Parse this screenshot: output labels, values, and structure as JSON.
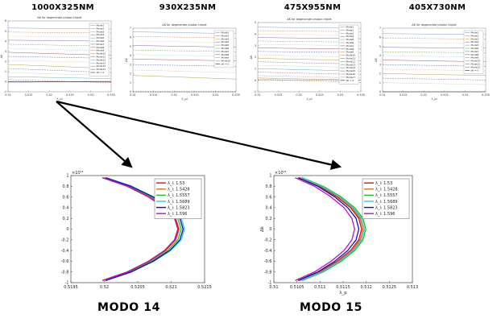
{
  "titles": {
    "top": [
      "1000X325NM",
      "930X235NM",
      "475X955NM",
      "405X730NM"
    ],
    "bottom": [
      "MODO 14",
      "MODO 15"
    ]
  },
  "chart_data": [
    {
      "type": "line",
      "title": "1000X325NM",
      "subtitle": "ΔK for degenerate photon triplet",
      "xlabel": "λ_pi",
      "ylabel": "ΔK",
      "xlim": [
        0.51,
        0.535
      ],
      "ylim": [
        -1,
        6
      ],
      "x_ticks": [
        "0.51",
        "0.515",
        "0.52",
        "0.525",
        "0.53",
        "0.535"
      ],
      "legend_position": "right",
      "series": [
        {
          "name": "Mode1",
          "values": [
            5.3,
            5.2
          ],
          "color": "#7aa0d0"
        },
        {
          "name": "Mode2",
          "values": [
            4.9,
            4.8
          ],
          "color": "#d08a5a"
        },
        {
          "name": "Mode3",
          "values": [
            4.5,
            4.4
          ],
          "color": "#c9b34a"
        },
        {
          "name": "Mode4",
          "values": [
            4.1,
            4.0
          ],
          "color": "#8a6ab0"
        },
        {
          "name": "Mode5",
          "values": [
            3.7,
            3.5
          ],
          "color": "#7ab05a"
        },
        {
          "name": "Mode6",
          "values": [
            3.3,
            3.0
          ],
          "color": "#5ab0c9"
        },
        {
          "name": "Mode7",
          "values": [
            2.9,
            2.6
          ],
          "color": "#b05a5a"
        },
        {
          "name": "Mode8",
          "values": [
            2.5,
            2.3
          ],
          "color": "#5a7ab0"
        },
        {
          "name": "Mode9",
          "values": [
            2.1,
            1.9
          ],
          "color": "#d0905a"
        },
        {
          "name": "Mode10",
          "values": [
            1.7,
            1.3
          ],
          "color": "#b0a04a"
        },
        {
          "name": "Mode11",
          "values": [
            1.3,
            0.9
          ],
          "color": "#9a6ab0"
        },
        {
          "name": "Mode12",
          "values": [
            0.9,
            0.6
          ],
          "color": "#6ab06a"
        },
        {
          "name": "Mode13",
          "values": [
            0.5,
            0.3
          ],
          "color": "#6ab0c0"
        },
        {
          "name": "Mode14",
          "values": [
            0.2,
            -0.1
          ],
          "color": "#c06a6a"
        },
        {
          "name": "Mode15",
          "values": [
            -0.1,
            0.1
          ],
          "color": "#4a6ab0"
        },
        {
          "name": "dK = 0",
          "values": [
            0,
            0
          ],
          "color": "#222222"
        }
      ]
    },
    {
      "type": "line",
      "title": "930X235NM",
      "subtitle": "ΔK for degenerate photon triplet",
      "xlabel": "λ_pi",
      "ylabel": "ΔK",
      "xlim": [
        0.51,
        0.535
      ],
      "ylim": [
        0,
        7
      ],
      "x_ticks": [
        "0.51",
        "0.515",
        "0.52",
        "0.525",
        "0.53",
        "0.535"
      ],
      "legend_position": "right",
      "series": [
        {
          "name": "Mode1",
          "values": [
            6.6,
            6.4
          ],
          "color": "#7aa0d0"
        },
        {
          "name": "Mode2",
          "values": [
            6.1,
            5.9
          ],
          "color": "#d08a5a"
        },
        {
          "name": "Mode3",
          "values": [
            5.6,
            5.4
          ],
          "color": "#c9b34a"
        },
        {
          "name": "Mode4",
          "values": [
            5.1,
            4.9
          ],
          "color": "#8a6ab0"
        },
        {
          "name": "Mode5",
          "values": [
            4.6,
            4.4
          ],
          "color": "#7ab05a"
        },
        {
          "name": "Mode6",
          "values": [
            4.1,
            3.9
          ],
          "color": "#5ab0c9"
        },
        {
          "name": "Mode7",
          "values": [
            3.6,
            3.4
          ],
          "color": "#b05a5a"
        },
        {
          "name": "Mode8",
          "values": [
            3.0,
            2.8
          ],
          "color": "#5a7ab0"
        },
        {
          "name": "Mode9",
          "values": [
            2.4,
            2.1
          ],
          "color": "#d0905a"
        },
        {
          "name": "Mode10",
          "values": [
            1.8,
            1.4
          ],
          "color": "#b0a04a"
        },
        {
          "name": "dK = 0",
          "values": [
            0,
            0
          ],
          "color": "#222222"
        }
      ]
    },
    {
      "type": "line",
      "title": "475X955NM",
      "subtitle": "ΔK for degenerate photon triplet",
      "xlabel": "λ_pi",
      "ylabel": "ΔK",
      "xlim": [
        0.51,
        0.535
      ],
      "ylim": [
        -1,
        5
      ],
      "x_ticks": [
        "0.51",
        "0.515",
        "0.52",
        "0.525",
        "0.53",
        "0.535"
      ],
      "legend_position": "right",
      "series": [
        {
          "name": "Mode1",
          "values": [
            4.6,
            4.5
          ],
          "color": "#7aa0d0"
        },
        {
          "name": "Mode2",
          "values": [
            4.3,
            4.2
          ],
          "color": "#d08a5a"
        },
        {
          "name": "Mode3",
          "values": [
            4.0,
            3.9
          ],
          "color": "#c9b34a"
        },
        {
          "name": "Mode4",
          "values": [
            3.7,
            3.6
          ],
          "color": "#8a6ab0"
        },
        {
          "name": "Mode5",
          "values": [
            3.4,
            3.3
          ],
          "color": "#7ab05a"
        },
        {
          "name": "Mode6",
          "values": [
            3.1,
            3.0
          ],
          "color": "#5ab0c9"
        },
        {
          "name": "Mode7",
          "values": [
            2.8,
            2.7
          ],
          "color": "#b05a5a"
        },
        {
          "name": "Mode8",
          "values": [
            2.5,
            2.4
          ],
          "color": "#5a7ab0"
        },
        {
          "name": "Mode9",
          "values": [
            2.2,
            2.0
          ],
          "color": "#d0905a"
        },
        {
          "name": "Mode10",
          "values": [
            1.9,
            1.7
          ],
          "color": "#b0a04a"
        },
        {
          "name": "Mode11",
          "values": [
            1.6,
            1.4
          ],
          "color": "#9a6ab0"
        },
        {
          "name": "Mode12",
          "values": [
            1.3,
            1.1
          ],
          "color": "#6ab06a"
        },
        {
          "name": "Mode13",
          "values": [
            1.0,
            0.8
          ],
          "color": "#6ab0c0"
        },
        {
          "name": "Mode14",
          "values": [
            0.7,
            0.5
          ],
          "color": "#c06a6a"
        },
        {
          "name": "Mode15",
          "values": [
            0.4,
            0.2
          ],
          "color": "#4a6ab0"
        },
        {
          "name": "Mode16",
          "values": [
            0.2,
            0.0
          ],
          "color": "#d08a5a"
        },
        {
          "name": "Mode17",
          "values": [
            0.1,
            -0.2
          ],
          "color": "#b0a04a"
        },
        {
          "name": "dK = 0",
          "values": [
            0,
            0
          ],
          "color": "#222222"
        }
      ]
    },
    {
      "type": "line",
      "title": "405X730NM",
      "subtitle": "ΔK for degenerate photon triplet",
      "xlabel": "λ_pi",
      "ylabel": "ΔK",
      "xlim": [
        0.51,
        0.535
      ],
      "ylim": [
        0,
        7
      ],
      "x_ticks": [
        "0.51",
        "0.515",
        "0.52",
        "0.525",
        "0.53",
        "0.535"
      ],
      "legend_position": "right",
      "series": [
        {
          "name": "Mode1",
          "values": [
            6.4,
            6.3
          ],
          "color": "#7aa0d0"
        },
        {
          "name": "Mode2",
          "values": [
            5.9,
            5.8
          ],
          "color": "#d08a5a"
        },
        {
          "name": "Mode3",
          "values": [
            5.4,
            5.3
          ],
          "color": "#c9b34a"
        },
        {
          "name": "Mode4",
          "values": [
            4.9,
            4.8
          ],
          "color": "#8a6ab0"
        },
        {
          "name": "Mode5",
          "values": [
            4.4,
            4.3
          ],
          "color": "#7ab05a"
        },
        {
          "name": "Mode6",
          "values": [
            4.0,
            3.8
          ],
          "color": "#5ab0c9"
        },
        {
          "name": "Mode7",
          "values": [
            3.5,
            3.3
          ],
          "color": "#b05a5a"
        },
        {
          "name": "Mode8",
          "values": [
            3.0,
            2.8
          ],
          "color": "#5a7ab0"
        },
        {
          "name": "Mode9",
          "values": [
            2.5,
            2.3
          ],
          "color": "#d0905a"
        },
        {
          "name": "Mode10",
          "values": [
            2.0,
            1.8
          ],
          "color": "#b0a04a"
        },
        {
          "name": "Mode11",
          "values": [
            1.5,
            1.3
          ],
          "color": "#9a6ab0"
        },
        {
          "name": "Mode12",
          "values": [
            1.0,
            0.8
          ],
          "color": "#6ab06a"
        },
        {
          "name": "dK = 0",
          "values": [
            0,
            0
          ],
          "color": "#222222"
        }
      ]
    },
    {
      "type": "line",
      "title": "MODO 14",
      "xlabel": "",
      "ylabel": "",
      "exponent_label": "×10¹⁴",
      "xlim": [
        0.5195,
        0.5215
      ],
      "ylim": [
        -1,
        1
      ],
      "x_ticks": [
        "0.5195",
        "0.52",
        "0.5205",
        "0.521",
        "0.5215"
      ],
      "y_ticks": [
        "-1",
        "-0.8",
        "-0.6",
        "-0.4",
        "-0.2",
        "0",
        "0.2",
        "0.4",
        "0.6",
        "0.8",
        "1"
      ],
      "legend_position": "top-right",
      "y": [
        -0.96,
        -0.8,
        -0.6,
        -0.4,
        -0.2,
        0,
        0.2,
        0.4,
        0.6,
        0.8,
        0.96
      ],
      "series": [
        {
          "name": "λ_i: 1.53",
          "color": "#e01010",
          "values": [
            0.51997,
            0.52034,
            0.52066,
            0.5209,
            0.52105,
            0.5211,
            0.52105,
            0.5209,
            0.52066,
            0.52034,
            0.51997
          ]
        },
        {
          "name": "λ_i: 1.5428",
          "color": "#e07010",
          "values": [
            0.51999,
            0.52036,
            0.52068,
            0.52092,
            0.52107,
            0.52112,
            0.52107,
            0.52092,
            0.52068,
            0.52036,
            0.51999
          ]
        },
        {
          "name": "λ_i: 1.5557",
          "color": "#20c020",
          "values": [
            0.52001,
            0.52038,
            0.52071,
            0.52095,
            0.5211,
            0.52115,
            0.5211,
            0.52095,
            0.52071,
            0.52038,
            0.52001
          ]
        },
        {
          "name": "λ_i: 1.5689",
          "color": "#20d0e0",
          "values": [
            0.52003,
            0.52041,
            0.52074,
            0.52099,
            0.52115,
            0.5212,
            0.52115,
            0.52099,
            0.52074,
            0.52041,
            0.52003
          ]
        },
        {
          "name": "λ_i: 1.5823",
          "color": "#1010c0",
          "values": [
            0.52002,
            0.5204,
            0.52073,
            0.52098,
            0.52113,
            0.52118,
            0.52113,
            0.52098,
            0.52073,
            0.5204,
            0.52002
          ]
        },
        {
          "name": "λ_i: 1.596",
          "color": "#c010c0",
          "values": [
            0.51998,
            0.52035,
            0.52067,
            0.52091,
            0.52106,
            0.52111,
            0.52106,
            0.52091,
            0.52067,
            0.52035,
            0.51998
          ]
        }
      ]
    },
    {
      "type": "line",
      "title": "MODO 15",
      "xlabel": "λ_p",
      "ylabel": "Δk",
      "exponent_label": "×10¹⁴",
      "xlim": [
        0.51,
        0.513
      ],
      "ylim": [
        -1,
        1
      ],
      "x_ticks": [
        "0.51",
        "0.5105",
        "0.511",
        "0.5115",
        "0.512",
        "0.5125",
        "0.513"
      ],
      "y_ticks": [
        "-1",
        "-0.8",
        "-0.6",
        "-0.4",
        "-0.2",
        "0",
        "0.2",
        "0.4",
        "0.6",
        "0.8",
        "1"
      ],
      "legend_position": "top-right",
      "y": [
        -0.96,
        -0.8,
        -0.6,
        -0.4,
        -0.2,
        0,
        0.2,
        0.4,
        0.6,
        0.8,
        0.96
      ],
      "series": [
        {
          "name": "λ_i: 1.53",
          "color": "#e01010",
          "values": [
            0.51055,
            0.51099,
            0.51137,
            0.51166,
            0.51184,
            0.5119,
            0.51184,
            0.51166,
            0.51137,
            0.51099,
            0.51055
          ]
        },
        {
          "name": "λ_i: 1.5428",
          "color": "#e07010",
          "values": [
            0.51058,
            0.51102,
            0.5114,
            0.51169,
            0.51187,
            0.51193,
            0.51187,
            0.51169,
            0.5114,
            0.51102,
            0.51058
          ]
        },
        {
          "name": "λ_i: 1.5557",
          "color": "#20c020",
          "values": [
            0.51062,
            0.51107,
            0.51146,
            0.51175,
            0.51193,
            0.51199,
            0.51193,
            0.51175,
            0.51146,
            0.51107,
            0.51062
          ]
        },
        {
          "name": "λ_i: 1.5689",
          "color": "#20d0e0",
          "values": [
            0.5106,
            0.51104,
            0.51143,
            0.51172,
            0.5119,
            0.51196,
            0.5119,
            0.51172,
            0.51143,
            0.51104,
            0.5106
          ]
        },
        {
          "name": "λ_i: 1.5823",
          "color": "#1010c0",
          "values": [
            0.51052,
            0.51095,
            0.51132,
            0.5116,
            0.51178,
            0.51184,
            0.51178,
            0.5116,
            0.51132,
            0.51095,
            0.51052
          ]
        },
        {
          "name": "λ_i: 1.596",
          "color": "#c010c0",
          "values": [
            0.51046,
            0.51088,
            0.51124,
            0.51152,
            0.51169,
            0.51175,
            0.51169,
            0.51152,
            0.51124,
            0.51088,
            0.51046
          ]
        }
      ]
    }
  ]
}
